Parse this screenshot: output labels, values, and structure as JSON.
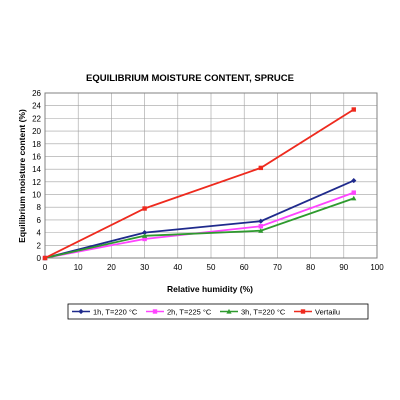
{
  "chart_data": {
    "type": "line",
    "title": "EQUILIBRIUM MOISTURE CONTENT, SPRUCE",
    "xlabel": "Relative humidity (%)",
    "ylabel": "Equilibrium moisture content (%)",
    "xlim": [
      0,
      100
    ],
    "ylim": [
      0,
      26
    ],
    "xticks": [
      0,
      10,
      20,
      30,
      40,
      50,
      60,
      70,
      80,
      90,
      100
    ],
    "yticks": [
      0,
      2,
      4,
      6,
      8,
      10,
      12,
      14,
      16,
      18,
      20,
      22,
      24,
      26
    ],
    "grid": true,
    "legend_position": "bottom",
    "series": [
      {
        "name": "1h, T=220 °C",
        "color": "#1f2a8c",
        "marker": "diamond",
        "points": [
          [
            0,
            0
          ],
          [
            30,
            4.0
          ],
          [
            65,
            5.8
          ],
          [
            93,
            12.2
          ]
        ]
      },
      {
        "name": "2h, T=225 °C",
        "color": "#ff44ff",
        "marker": "square",
        "points": [
          [
            0,
            0
          ],
          [
            30,
            3.0
          ],
          [
            65,
            5.0
          ],
          [
            93,
            10.3
          ]
        ]
      },
      {
        "name": "3h, T=220 °C",
        "color": "#2e9a2e",
        "marker": "triangle",
        "points": [
          [
            0,
            0
          ],
          [
            30,
            3.5
          ],
          [
            65,
            4.3
          ],
          [
            93,
            9.4
          ]
        ]
      },
      {
        "name": "Vertailu",
        "color": "#ee2a1e",
        "marker": "square",
        "points": [
          [
            0,
            0
          ],
          [
            30,
            7.8
          ],
          [
            65,
            14.2
          ],
          [
            93,
            23.4
          ]
        ]
      }
    ]
  }
}
